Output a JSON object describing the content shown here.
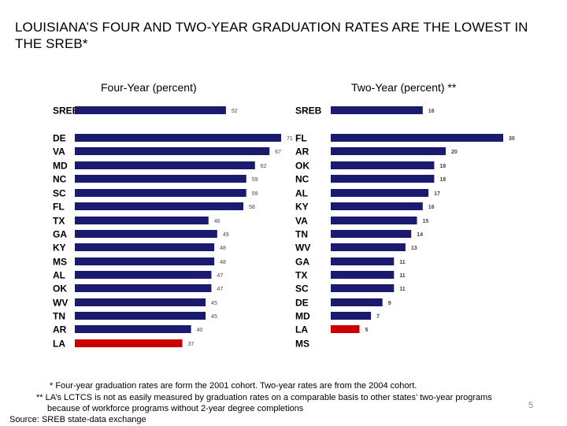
{
  "title": "LOUISIANA’S FOUR AND TWO-YEAR GRADUATION RATES ARE THE LOWEST IN THE SREB*",
  "page_number": "5",
  "notes": [
    "* Four-year graduation rates are form the 2001 cohort. Two-year rates are from the 2004 cohort.",
    "** LA’s LCTCS is not as easily measured by graduation rates on a comparable basis to other states’  two-year programs",
    "because of workforce programs without 2-year degree completions",
    "Source: SREB state-data exchange"
  ],
  "colors": {
    "bar": "#1a1a6e",
    "highlight": "#cc0000",
    "label": "#000000"
  },
  "chart_data": [
    {
      "type": "bar",
      "orientation": "horizontal",
      "title": "Four-Year (percent)",
      "categories": [
        "SREB",
        "DE",
        "VA",
        "MD",
        "NC",
        "SC",
        "FL",
        "TX",
        "GA",
        "KY",
        "MS",
        "AL",
        "OK",
        "WV",
        "TN",
        "AR",
        "LA"
      ],
      "values": [
        52,
        71,
        67,
        62,
        59,
        59,
        58,
        46,
        49,
        48,
        48,
        47,
        47,
        45,
        45,
        40,
        37
      ],
      "highlight": "LA",
      "xlim": [
        0,
        72
      ]
    },
    {
      "type": "bar",
      "orientation": "horizontal",
      "title": "Two-Year (percent) **",
      "categories": [
        "SREB",
        "FL",
        "AR",
        "OK",
        "NC",
        "AL",
        "KY",
        "VA",
        "TN",
        "WV",
        "GA",
        "TX",
        "SC",
        "DE",
        "MD",
        "LA",
        "MS"
      ],
      "values": [
        16,
        30,
        20,
        18,
        18,
        17,
        16,
        15,
        14,
        13,
        11,
        11,
        11,
        9,
        7,
        5,
        null
      ],
      "highlight": "LA",
      "xlim": [
        0,
        30
      ]
    }
  ]
}
